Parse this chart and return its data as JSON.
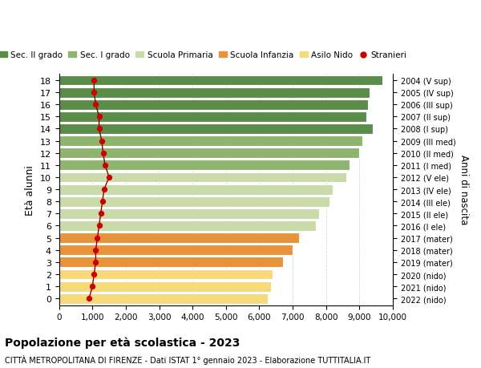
{
  "ages": [
    0,
    1,
    2,
    3,
    4,
    5,
    6,
    7,
    8,
    9,
    10,
    11,
    12,
    13,
    14,
    15,
    16,
    17,
    18
  ],
  "bar_values": [
    6250,
    6350,
    6400,
    6700,
    7000,
    7200,
    7700,
    7800,
    8100,
    8200,
    8600,
    8700,
    9000,
    9100,
    9400,
    9200,
    9250,
    9300,
    9700
  ],
  "stranieri_values": [
    900,
    1000,
    1050,
    1100,
    1100,
    1150,
    1200,
    1250,
    1300,
    1350,
    1500,
    1380,
    1320,
    1280,
    1200,
    1200,
    1100,
    1050,
    1050
  ],
  "bar_colors": [
    "#f5d97a",
    "#f5d97a",
    "#f5d97a",
    "#e8923a",
    "#e8923a",
    "#e8923a",
    "#c8dba8",
    "#c8dba8",
    "#c8dba8",
    "#c8dba8",
    "#c8dba8",
    "#8db56e",
    "#8db56e",
    "#8db56e",
    "#5a8c4a",
    "#5a8c4a",
    "#5a8c4a",
    "#5a8c4a",
    "#5a8c4a"
  ],
  "right_labels": [
    "2022 (nido)",
    "2021 (nido)",
    "2020 (nido)",
    "2019 (mater)",
    "2018 (mater)",
    "2017 (mater)",
    "2016 (I ele)",
    "2015 (II ele)",
    "2014 (III ele)",
    "2013 (IV ele)",
    "2012 (V ele)",
    "2011 (I med)",
    "2010 (II med)",
    "2009 (III med)",
    "2008 (I sup)",
    "2007 (II sup)",
    "2006 (III sup)",
    "2005 (IV sup)",
    "2004 (V sup)"
  ],
  "legend_labels": [
    "Sec. II grado",
    "Sec. I grado",
    "Scuola Primaria",
    "Scuola Infanzia",
    "Asilo Nido",
    "Stranieri"
  ],
  "legend_colors": [
    "#5a8c4a",
    "#8db56e",
    "#c8dba8",
    "#e8923a",
    "#f5d97a",
    "#cc0000"
  ],
  "ylabel_left": "Età alunni",
  "ylabel_right": "Anni di nascita",
  "title": "Popolazione per età scolastica - 2023",
  "subtitle": "CITTÀ METROPOLITANA DI FIRENZE - Dati ISTAT 1° gennaio 2023 - Elaborazione TUTTITALIA.IT",
  "xlim": [
    0,
    10000
  ],
  "xticks": [
    0,
    1000,
    2000,
    3000,
    4000,
    5000,
    6000,
    7000,
    8000,
    9000,
    10000
  ],
  "xtick_labels": [
    "0",
    "1,000",
    "2,000",
    "3,000",
    "4,000",
    "5,000",
    "6,000",
    "7,000",
    "8,000",
    "9,000",
    "10,000"
  ],
  "background_color": "#ffffff"
}
